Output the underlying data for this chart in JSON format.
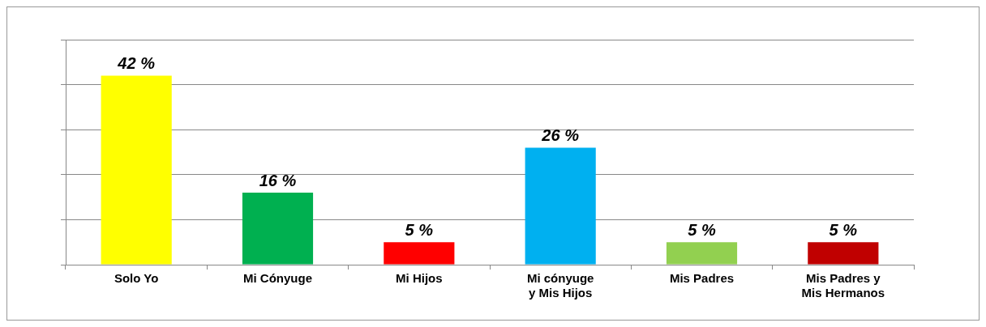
{
  "chart_data": {
    "type": "bar",
    "categories": [
      "Solo Yo",
      "Mi Cónyuge",
      "Mi Hijos",
      "Mi cónyuge y Mis Hijos",
      "Mis Padres",
      "Mis Padres y Mis Hermanos"
    ],
    "values": [
      42,
      16,
      5,
      26,
      5,
      5
    ],
    "value_labels": [
      "42 %",
      "16 %",
      "5 %",
      "26 %",
      "5 %",
      "5 %"
    ],
    "colors": [
      "#ffff00",
      "#00b050",
      "#ff0000",
      "#00b0f0",
      "#92d050",
      "#c00000"
    ],
    "ylim": [
      0,
      50
    ],
    "yticks": [
      {
        "value": 0,
        "label": null
      },
      {
        "value": 10,
        "label": null
      },
      {
        "value": 20,
        "label": null
      },
      {
        "value": 30,
        "label": null
      },
      {
        "value": 40,
        "label": null
      },
      {
        "value": 50,
        "label": null
      }
    ],
    "grid": "y",
    "legend": false
  }
}
